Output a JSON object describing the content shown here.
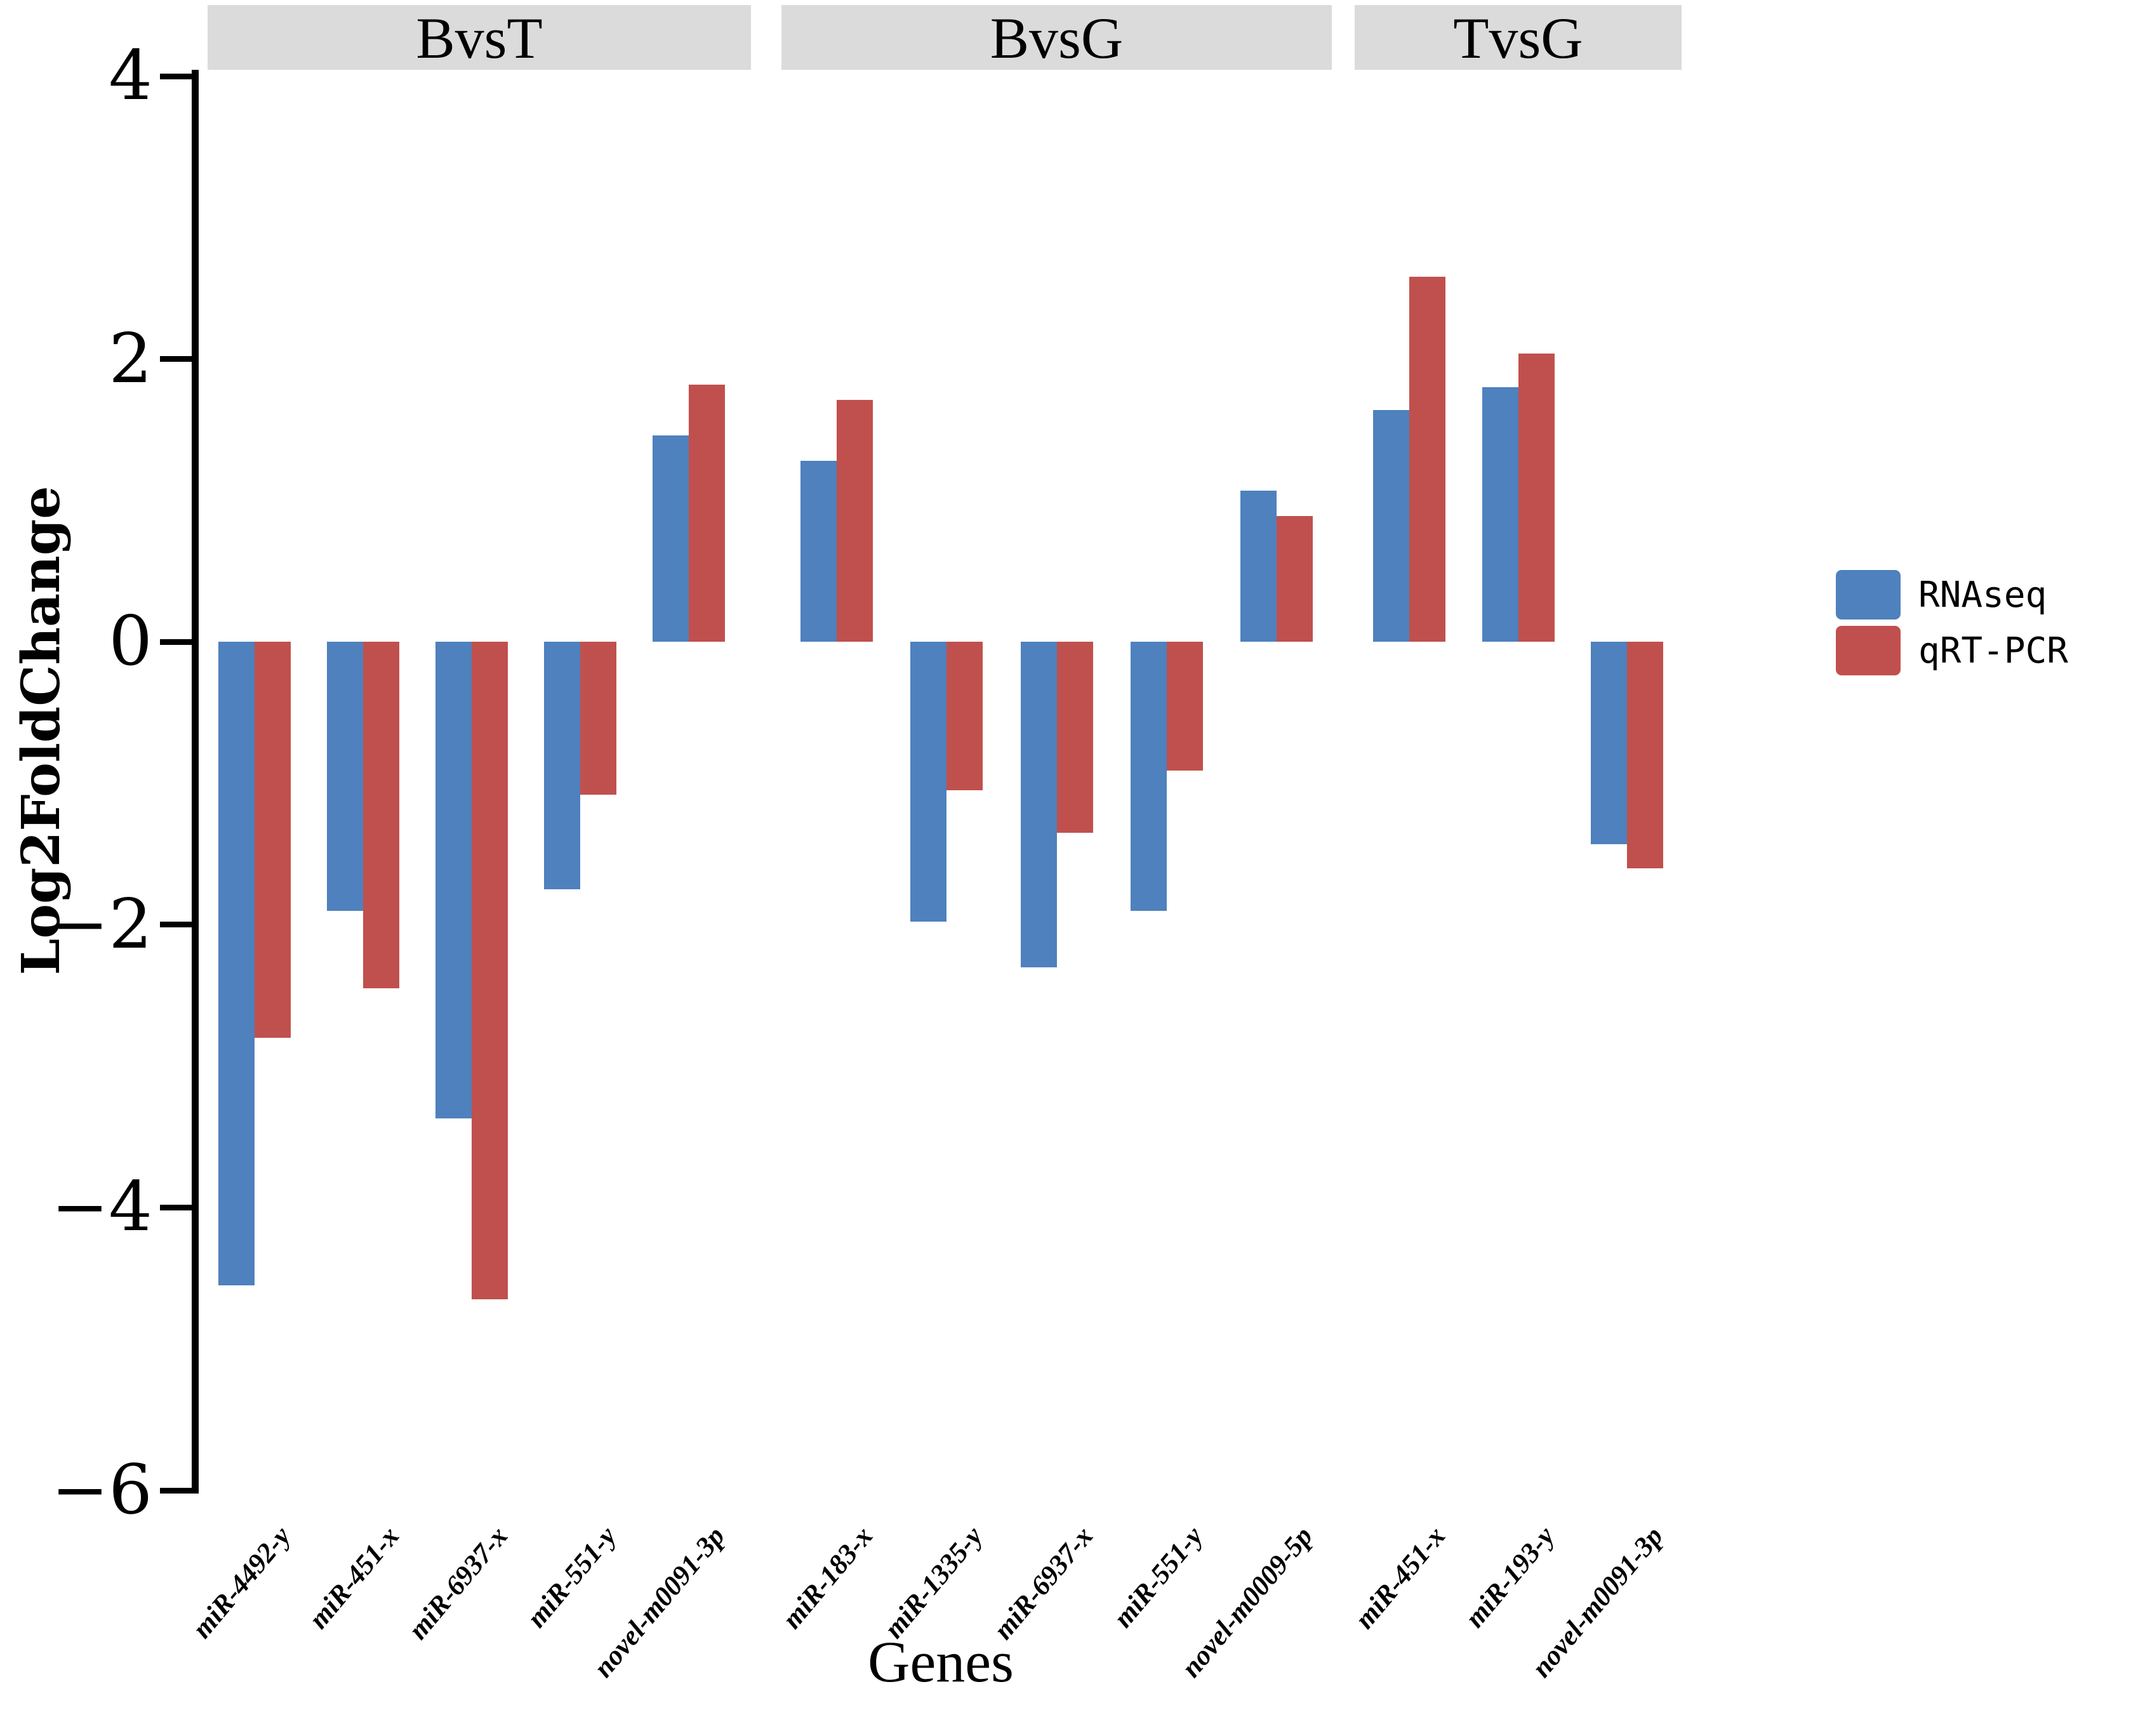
{
  "legend": {
    "entries": [
      {
        "label": "RNAseq",
        "color": "#4e81bd"
      },
      {
        "label": "qRT-PCR",
        "color": "#c0504d"
      }
    ]
  },
  "chart_data": {
    "type": "bar",
    "title": "",
    "ylabel": "Log2FoldChange",
    "xlabel": "Genes",
    "ylim": [
      -6,
      4
    ],
    "yticks": [
      4,
      2,
      0,
      -2,
      -4,
      -6
    ],
    "grid": false,
    "legend_position": "right-center",
    "bar_colors": [
      "#4e81bd",
      "#c0504d"
    ],
    "facet_header_bg": "#dbdbdb",
    "facets": [
      {
        "label": "BvsT",
        "categories": [
          "miR-4492-y",
          "miR-451-x",
          "miR-6937-x",
          "miR-551-y",
          "novel-m0091-3p"
        ],
        "series": [
          {
            "name": "RNAseq",
            "values": [
              -4.55,
              -1.9,
              -3.37,
              -1.75,
              1.46
            ]
          },
          {
            "name": "qRT-PCR",
            "values": [
              -2.8,
              -2.45,
              -4.65,
              -1.08,
              1.82
            ]
          }
        ]
      },
      {
        "label": "BvsG",
        "categories": [
          "miR-183-x",
          "miR-1335-y",
          "miR-6937-x",
          "miR-551-y",
          "novel-m0009-5p"
        ],
        "series": [
          {
            "name": "RNAseq",
            "values": [
              1.28,
              -1.98,
              -2.3,
              -1.9,
              1.07
            ]
          },
          {
            "name": "qRT-PCR",
            "values": [
              1.71,
              -1.05,
              -1.35,
              -0.91,
              0.89
            ]
          }
        ]
      },
      {
        "label": "TvsG",
        "categories": [
          "miR-451-x",
          "miR-193-y",
          "novel-m0091-3p"
        ],
        "series": [
          {
            "name": "RNAseq",
            "values": [
              1.64,
              1.8,
              -1.43
            ]
          },
          {
            "name": "qRT-PCR",
            "values": [
              2.58,
              2.04,
              -1.6
            ]
          }
        ]
      }
    ]
  }
}
